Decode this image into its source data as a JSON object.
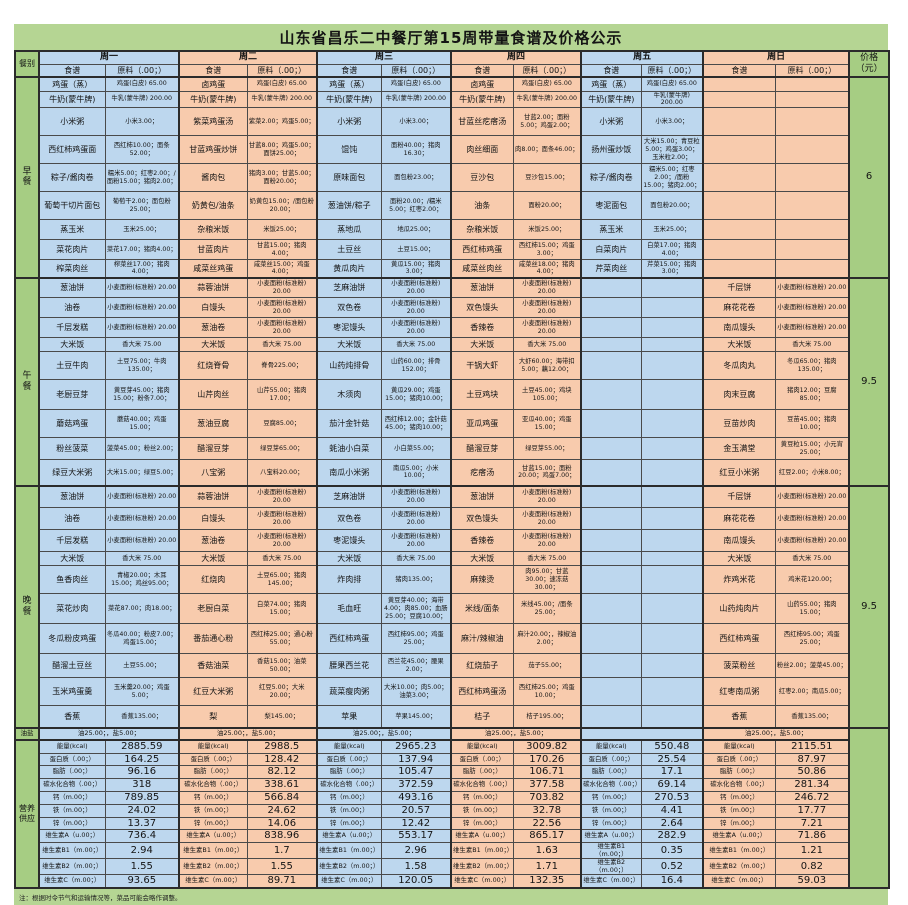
{
  "title": "山东省昌乐二中餐厅第15周带量食谱及价格公示",
  "footer_note": "注：根据时令节气和运输情况等，菜品可能会略作调整。",
  "colors": {
    "day_blue": "#bdd7ee",
    "day_peach": "#f8cbad",
    "label_green": "#a6cd83",
    "band_green": "#b5d593"
  },
  "headers": {
    "category": "餐别",
    "recipe": "食谱",
    "ingredient": "原料（.00；）",
    "price": "价格（元）"
  },
  "days": [
    {
      "label": "周一",
      "color": "blue"
    },
    {
      "label": "周二",
      "color": "peach"
    },
    {
      "label": "周三",
      "color": "blue"
    },
    {
      "label": "周四",
      "color": "peach"
    },
    {
      "label": "周五",
      "color": "blue"
    },
    {
      "label": "周日",
      "color": "peach"
    }
  ],
  "meal_sections": [
    {
      "label": "早餐",
      "price": "6",
      "rows": [
        [
          [
            "鸡蛋（蒸）",
            "鸡蛋(白皮) 65.00"
          ],
          [
            "卤鸡蛋",
            "鸡蛋(白皮) 65.00"
          ],
          [
            "鸡蛋（蒸）",
            "鸡蛋(白皮) 65.00"
          ],
          [
            "卤鸡蛋",
            "鸡蛋(白皮) 65.00"
          ],
          [
            "鸡蛋（蒸）",
            "鸡蛋(白皮) 65.00"
          ],
          [
            "",
            ""
          ]
        ],
        [
          [
            "牛奶(蒙牛牌)",
            "牛乳(蒙牛牌) 200.00"
          ],
          [
            "牛奶(蒙牛牌)",
            "牛乳(蒙牛牌) 200.00"
          ],
          [
            "牛奶(蒙牛牌)",
            "牛乳(蒙牛牌) 200.00"
          ],
          [
            "牛奶(蒙牛牌)",
            "牛乳(蒙牛牌) 200.00"
          ],
          [
            "牛奶(蒙牛牌)",
            "牛乳(蒙牛牌) 200.00"
          ],
          [
            "",
            ""
          ]
        ],
        [
          [
            "小米粥",
            "小米3.00；"
          ],
          [
            "紫菜鸡蛋汤",
            "紫菜2.00；鸡蛋5.00；"
          ],
          [
            "小米粥",
            "小米3.00；"
          ],
          [
            "甘蓝丝疙瘩汤",
            "甘蓝2.00；面粉5.00；鸡蛋2.00；"
          ],
          [
            "小米粥",
            "小米3.00；"
          ],
          [
            "",
            ""
          ]
        ],
        [
          [
            "西红柿鸡蛋面",
            "西红柿10.00；面条52.00；"
          ],
          [
            "甘蓝鸡蛋炒饼",
            "甘蓝8.00；鸡蛋5.00；面饼25.00；"
          ],
          [
            "馄饨",
            "面粉40.00；猪肉16.30；"
          ],
          [
            "肉丝细面",
            "肉8.00；面条46.00；"
          ],
          [
            "扬州蛋炒饭",
            "大米15.00；青豆粒5.00；鸡蛋3.00；玉米粒2.00；"
          ],
          [
            "",
            ""
          ]
        ],
        [
          [
            "粽子/酱肉卷",
            "糯米5.00；红枣2.00；/面粉15.00；猪肉2.00；"
          ],
          [
            "酱肉包",
            "猪肉3.00；甘蓝5.00；面粉20.00；"
          ],
          [
            "原味面包",
            "面包粉23.00；"
          ],
          [
            "豆沙包",
            "豆沙包15.00；"
          ],
          [
            "粽子/酱肉卷",
            "糯米5.00；红枣2.00；/面粉15.00；猪肉2.00；"
          ],
          [
            "",
            ""
          ]
        ],
        [
          [
            "葡萄干切片面包",
            "葡萄干2.00；面包粉25.00；"
          ],
          [
            "奶黄包/油条",
            "奶黄包15.00；/面包粉20.00；"
          ],
          [
            "葱油饼/粽子",
            "面粉20.00；/糯米5.00；红枣2.00；"
          ],
          [
            "油条",
            "面粉20.00；"
          ],
          [
            "枣泥面包",
            "面包粉20.00；"
          ],
          [
            "",
            ""
          ]
        ],
        [
          [
            "蒸玉米",
            "玉米25.00；"
          ],
          [
            "杂粮米饭",
            "米饭25.00；"
          ],
          [
            "蒸地瓜",
            "地瓜25.00；"
          ],
          [
            "杂粮米饭",
            "米饭25.00；"
          ],
          [
            "蒸玉米",
            "玉米25.00；"
          ],
          [
            "",
            ""
          ]
        ],
        [
          [
            "菜花肉片",
            "菜花17.00；猪肉4.00；"
          ],
          [
            "甘蓝肉片",
            "甘蓝15.00；猪肉4.00；"
          ],
          [
            "土豆丝",
            "土豆15.00；"
          ],
          [
            "西红柿鸡蛋",
            "西红柿15.00；鸡蛋3.00；"
          ],
          [
            "白菜肉片",
            "白菜17.00；猪肉4.00；"
          ],
          [
            "",
            ""
          ]
        ],
        [
          [
            "榨菜肉丝",
            "榨菜丝17.00；猪肉4.00；"
          ],
          [
            "咸菜丝鸡蛋",
            "咸菜丝15.00；鸡蛋4.00；"
          ],
          [
            "黄瓜肉片",
            "黄瓜15.00；猪肉3.00；"
          ],
          [
            "咸菜丝肉丝",
            "咸菜丝18.00；猪肉4.00；"
          ],
          [
            "芹菜肉丝",
            "芹菜15.00；猪肉3.00；"
          ],
          [
            "",
            ""
          ]
        ]
      ]
    },
    {
      "label": "午餐",
      "price": "9.5",
      "rows": [
        [
          [
            "葱油饼",
            "小麦面粉(标准粉) 20.00"
          ],
          [
            "蒜蓉油饼",
            "小麦面粉(标准粉) 20.00"
          ],
          [
            "芝麻油饼",
            "小麦面粉(标准粉) 20.00"
          ],
          [
            "葱油饼",
            "小麦面粉(标准粉) 20.00"
          ],
          [
            "",
            ""
          ],
          [
            "千层饼",
            "小麦面粉(标准粉) 20.00"
          ]
        ],
        [
          [
            "油卷",
            "小麦面粉(标准粉) 20.00"
          ],
          [
            "白馒头",
            "小麦面粉(标准粉) 20.00"
          ],
          [
            "双色卷",
            "小麦面粉(标准粉) 20.00"
          ],
          [
            "双色馒头",
            "小麦面粉(标准粉) 20.00"
          ],
          [
            "",
            ""
          ],
          [
            "麻花花卷",
            "小麦面粉(标准粉) 20.00"
          ]
        ],
        [
          [
            "千层发糕",
            "小麦面粉(标准粉) 20.00"
          ],
          [
            "葱油卷",
            "小麦面粉(标准粉) 20.00"
          ],
          [
            "枣泥馒头",
            "小麦面粉(标准粉) 20.00"
          ],
          [
            "香辣卷",
            "小麦面粉(标准粉) 20.00"
          ],
          [
            "",
            ""
          ],
          [
            "南瓜馒头",
            "小麦面粉(标准粉) 20.00"
          ]
        ],
        [
          [
            "大米饭",
            "香大米 75.00"
          ],
          [
            "大米饭",
            "香大米 75.00"
          ],
          [
            "大米饭",
            "香大米 75.00"
          ],
          [
            "大米饭",
            "香大米 75.00"
          ],
          [
            "",
            ""
          ],
          [
            "大米饭",
            "香大米 75.00"
          ]
        ],
        [
          [
            "土豆牛肉",
            "土豆75.00；牛肉135.00；"
          ],
          [
            "红烧脊骨",
            "脊骨225.00；"
          ],
          [
            "山药炖排骨",
            "山药60.00；排骨152.00；"
          ],
          [
            "干锅大虾",
            "大虾60.00；海带扣5.00；藕12.00；"
          ],
          [
            "",
            ""
          ],
          [
            "冬瓜肉丸",
            "冬瓜65.00；猪肉135.00；"
          ]
        ],
        [
          [
            "老厨豆芽",
            "黄豆芽45.00；猪肉15.00；粉条7.00；"
          ],
          [
            "山芹肉丝",
            "山芹55.00；猪肉17.00；"
          ],
          [
            "木须肉",
            "黄瓜29.00；鸡蛋15.00；猪肉10.00；"
          ],
          [
            "土豆鸡块",
            "土豆45.00；鸡块105.00；"
          ],
          [
            "",
            ""
          ],
          [
            "肉末豆腐",
            "猪肉12.00；豆腐85.00；"
          ]
        ],
        [
          [
            "蘑菇鸡蛋",
            "蘑菇40.00；鸡蛋15.00；"
          ],
          [
            "葱油豆腐",
            "豆腐85.00；"
          ],
          [
            "茄汁金针菇",
            "西红柿12.00；金针菇45.00；猪肉10.00；"
          ],
          [
            "亚瓜鸡蛋",
            "亚瓜40.00；鸡蛋15.00；"
          ],
          [
            "",
            ""
          ],
          [
            "豆苗炒肉",
            "豆苗45.00；猪肉10.00；"
          ]
        ],
        [
          [
            "粉丝菠菜",
            "菠菜45.00；粉丝2.00；"
          ],
          [
            "醋溜豆芽",
            "绿豆芽65.00；"
          ],
          [
            "蚝油小白菜",
            "小白菜55.00；"
          ],
          [
            "醋溜豆芽",
            "绿豆芽55.00；"
          ],
          [
            "",
            ""
          ],
          [
            "金玉满堂",
            "黄豆粒15.00；小元宵25.00；"
          ]
        ],
        [
          [
            "绿豆大米粥",
            "大米15.00；绿豆5.00；"
          ],
          [
            "八宝粥",
            "八宝料20.00；"
          ],
          [
            "南瓜小米粥",
            "南瓜5.00；小米10.00；"
          ],
          [
            "疙瘩汤",
            "甘蓝15.00；面粉20.00；鸡蛋7.00；"
          ],
          [
            "",
            ""
          ],
          [
            "红豆小米粥",
            "红豆2.00；小米8.00；"
          ]
        ]
      ]
    },
    {
      "label": "晚餐",
      "price": "9.5",
      "rows": [
        [
          [
            "葱油饼",
            "小麦面粉(标准粉) 20.00"
          ],
          [
            "蒜蓉油饼",
            "小麦面粉(标准粉) 20.00"
          ],
          [
            "芝麻油饼",
            "小麦面粉(标准粉) 20.00"
          ],
          [
            "葱油饼",
            "小麦面粉(标准粉) 20.00"
          ],
          [
            "",
            ""
          ],
          [
            "千层饼",
            "小麦面粉(标准粉) 20.00"
          ]
        ],
        [
          [
            "油卷",
            "小麦面粉(标准粉) 20.00"
          ],
          [
            "白馒头",
            "小麦面粉(标准粉) 20.00"
          ],
          [
            "双色卷",
            "小麦面粉(标准粉) 20.00"
          ],
          [
            "双色馒头",
            "小麦面粉(标准粉) 20.00"
          ],
          [
            "",
            ""
          ],
          [
            "麻花花卷",
            "小麦面粉(标准粉) 20.00"
          ]
        ],
        [
          [
            "千层发糕",
            "小麦面粉(标准粉) 20.00"
          ],
          [
            "葱油卷",
            "小麦面粉(标准粉) 20.00"
          ],
          [
            "枣泥馒头",
            "小麦面粉(标准粉) 20.00"
          ],
          [
            "香辣卷",
            "小麦面粉(标准粉) 20.00"
          ],
          [
            "",
            ""
          ],
          [
            "南瓜馒头",
            "小麦面粉(标准粉) 20.00"
          ]
        ],
        [
          [
            "大米饭",
            "香大米 75.00"
          ],
          [
            "大米饭",
            "香大米 75.00"
          ],
          [
            "大米饭",
            "香大米 75.00"
          ],
          [
            "大米饭",
            "香大米 75.00"
          ],
          [
            "",
            ""
          ],
          [
            "大米饭",
            "香大米 75.00"
          ]
        ],
        [
          [
            "鱼香肉丝",
            "青椒20.00；木耳15.00；鸡丝95.00；"
          ],
          [
            "红烧肉",
            "土豆65.00；猪肉145.00；"
          ],
          [
            "炸肉排",
            "猪肉135.00；"
          ],
          [
            "麻辣烫",
            "肉95.00；甘蓝30.00；速冻菇30.00；"
          ],
          [
            "",
            ""
          ],
          [
            "炸鸡米花",
            "鸡米花120.00；"
          ]
        ],
        [
          [
            "菜花炒肉",
            "菜花87.00；肉18.00；"
          ],
          [
            "老厨白菜",
            "白菜74.00；猪肉15.00；"
          ],
          [
            "毛血旺",
            "黄豆芽40.00；海带4.00；肉85.00；血肠25.00；豆腐10.00；"
          ],
          [
            "米线/面条",
            "米线45.00；/面条25.00；"
          ],
          [
            "",
            ""
          ],
          [
            "山药炖肉片",
            "山药55.00；猪肉15.00；"
          ]
        ],
        [
          [
            "冬瓜粉皮鸡蛋",
            "冬瓜40.00；粉皮7.00；鸡蛋15.00；"
          ],
          [
            "番茄通心粉",
            "西红柿25.00；通心粉55.00；"
          ],
          [
            "西红柿鸡蛋",
            "西红柿95.00；鸡蛋25.00；"
          ],
          [
            "麻汁/辣椒油",
            "麻汁20.00；，辣椒油2.00；"
          ],
          [
            "",
            ""
          ],
          [
            "西红柿鸡蛋",
            "西红柿95.00；鸡蛋25.00；"
          ]
        ],
        [
          [
            "醋溜土豆丝",
            "土豆55.00；"
          ],
          [
            "香菇油菜",
            "香菇15.00；油菜50.00；"
          ],
          [
            "腰果西兰花",
            "西兰花45.00；腰果2.00；"
          ],
          [
            "红烧茄子",
            "茄子55.00；"
          ],
          [
            "",
            ""
          ],
          [
            "菠菜粉丝",
            "粉丝2.00；菠菜45.00；"
          ]
        ],
        [
          [
            "玉米鸡蛋羹",
            "玉米羹20.00；鸡蛋5.00；"
          ],
          [
            "红豆大米粥",
            "红豆5.00；大米20.00；"
          ],
          [
            "蔬菜瘦肉粥",
            "大米10.00；肉5.00；油菜3.00；"
          ],
          [
            "西红柿鸡蛋汤",
            "西红柿25.00；鸡蛋10.00；"
          ],
          [
            "",
            ""
          ],
          [
            "红枣南瓜粥",
            "红枣2.00；南瓜5.00；"
          ]
        ],
        [
          [
            "香蕉",
            "香蕉135.00；"
          ],
          [
            "梨",
            "梨145.00；"
          ],
          [
            "苹果",
            "苹果145.00；"
          ],
          [
            "桔子",
            "桔子195.00；"
          ],
          [
            "",
            ""
          ],
          [
            "香蕉",
            "香蕉135.00；"
          ]
        ]
      ]
    }
  ],
  "oil_salt_row": {
    "label": "油盐",
    "value": "油25.00；，盐5.00；",
    "per_day": [
      true,
      true,
      true,
      true,
      false,
      true
    ]
  },
  "nutrition": {
    "label": "营养供应",
    "rows": [
      {
        "name": "能量(kcal)",
        "values": [
          "2885.59",
          "2988.5",
          "2965.23",
          "3009.82",
          "550.48",
          "2115.51"
        ]
      },
      {
        "name": "蛋白质（.00；）",
        "values": [
          "164.25",
          "128.42",
          "137.94",
          "170.26",
          "25.54",
          "87.97"
        ]
      },
      {
        "name": "脂肪（.00；）",
        "values": [
          "96.16",
          "82.12",
          "105.47",
          "106.71",
          "17.1",
          "50.86"
        ]
      },
      {
        "name": "碳水化合物（.00；）",
        "values": [
          "318",
          "338.61",
          "372.59",
          "377.58",
          "69.14",
          "281.34"
        ]
      },
      {
        "name": "钙（m.00；）",
        "values": [
          "789.85",
          "566.84",
          "493.16",
          "703.82",
          "270.53",
          "246.72"
        ]
      },
      {
        "name": "铁（m.00；）",
        "values": [
          "24.02",
          "24.62",
          "20.57",
          "32.78",
          "4.41",
          "17.77"
        ]
      },
      {
        "name": "锌（m.00；）",
        "values": [
          "13.37",
          "14.06",
          "12.42",
          "22.56",
          "2.64",
          "7.21"
        ]
      },
      {
        "name": "维生素A（u.00；）",
        "values": [
          "736.4",
          "838.96",
          "553.17",
          "865.17",
          "282.9",
          "71.86"
        ]
      },
      {
        "name": "维生素B1（m.00；）",
        "values": [
          "2.94",
          "1.7",
          "2.96",
          "1.63",
          "0.35",
          "1.21"
        ]
      },
      {
        "name": "维生素B2（m.00；）",
        "values": [
          "1.55",
          "1.55",
          "1.58",
          "1.71",
          "0.52",
          "0.82"
        ]
      },
      {
        "name": "维生素C（m.00；）",
        "values": [
          "93.65",
          "89.71",
          "120.05",
          "132.35",
          "16.4",
          "59.03"
        ]
      }
    ]
  }
}
